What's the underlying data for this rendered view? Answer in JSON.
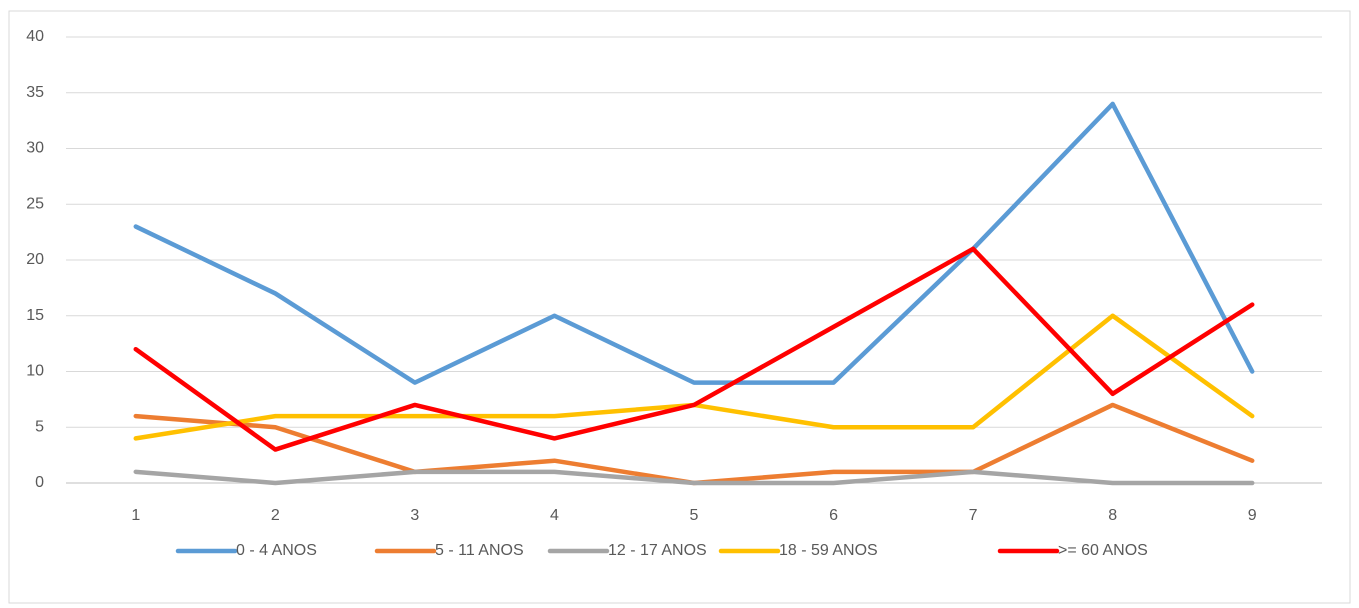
{
  "chart_data": {
    "type": "line",
    "categories": [
      "1",
      "2",
      "3",
      "4",
      "5",
      "6",
      "7",
      "8",
      "9"
    ],
    "series": [
      {
        "name": "0 - 4 ANOS",
        "color": "#5b9bd5",
        "values": [
          23,
          17,
          9,
          15,
          9,
          9,
          21,
          34,
          10
        ]
      },
      {
        "name": "5 - 11 ANOS",
        "color": "#ed7d31",
        "values": [
          6,
          5,
          1,
          2,
          0,
          1,
          1,
          7,
          2
        ]
      },
      {
        "name": "12 - 17 ANOS",
        "color": "#a5a5a5",
        "values": [
          1,
          0,
          1,
          1,
          0,
          0,
          1,
          0,
          0
        ]
      },
      {
        "name": "18 - 59 ANOS",
        "color": "#ffc000",
        "values": [
          4,
          6,
          6,
          6,
          7,
          5,
          5,
          15,
          6
        ]
      },
      {
        "name": ">= 60 ANOS",
        "color": "#ff0000",
        "values": [
          12,
          3,
          7,
          4,
          7,
          14,
          21,
          8,
          16
        ]
      }
    ],
    "ylim": [
      0,
      40
    ],
    "yticks": [
      0,
      5,
      10,
      15,
      20,
      25,
      30,
      35,
      40
    ],
    "grid": true,
    "legend": "bottom"
  }
}
